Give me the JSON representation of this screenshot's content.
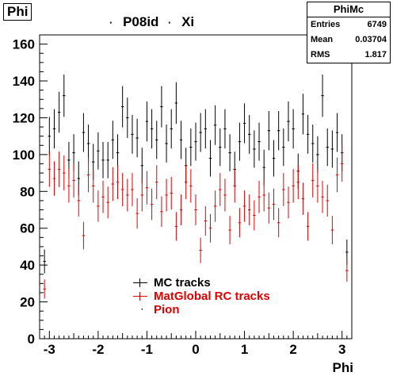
{
  "title": "Phi",
  "header_legend": {
    "left": "P08id",
    "right": "Xi"
  },
  "stats": {
    "name": "PhiMc",
    "rows": [
      {
        "label": "Entries",
        "value": "6749"
      },
      {
        "label": "Mean",
        "value": "0.03704"
      },
      {
        "label": "RMS",
        "value": "1.817"
      }
    ]
  },
  "legend": [
    {
      "label": "MC tracks",
      "color": "#000000"
    },
    {
      "label": "MatGlobal RC tracks",
      "color": "#e00000"
    },
    {
      "label": "Pion",
      "color": "#e00000"
    }
  ],
  "chart_data": {
    "type": "scatter",
    "title": "Phi",
    "xlabel": "Phi",
    "ylabel": "",
    "xlim": [
      -3.2,
      3.2
    ],
    "ylim": [
      0,
      165
    ],
    "xticks": [
      "-3",
      "-2",
      "-1",
      "0",
      "1",
      "2",
      "3"
    ],
    "yticks": [
      "0",
      "20",
      "40",
      "60",
      "80",
      "100",
      "120",
      "140",
      "160"
    ],
    "grid": false,
    "x": [
      -3.1,
      -3.0,
      -2.9,
      -2.8,
      -2.7,
      -2.6,
      -2.5,
      -2.4,
      -2.3,
      -2.2,
      -2.1,
      -2.0,
      -1.9,
      -1.8,
      -1.7,
      -1.6,
      -1.5,
      -1.4,
      -1.3,
      -1.2,
      -1.1,
      -1.0,
      -0.9,
      -0.8,
      -0.7,
      -0.6,
      -0.5,
      -0.4,
      -0.3,
      -0.2,
      -0.1,
      0.0,
      0.1,
      0.2,
      0.3,
      0.4,
      0.5,
      0.6,
      0.7,
      0.8,
      0.9,
      1.0,
      1.1,
      1.2,
      1.3,
      1.4,
      1.5,
      1.6,
      1.7,
      1.8,
      1.9,
      2.0,
      2.1,
      2.2,
      2.3,
      2.4,
      2.5,
      2.6,
      2.7,
      2.8,
      2.9,
      3.0,
      3.1
    ],
    "series": [
      {
        "name": "MC tracks",
        "color": "#000000",
        "values": [
          42,
          110,
          114,
          123,
          132,
          97,
          101,
          87,
          112,
          106,
          96,
          102,
          97,
          97,
          108,
          101,
          126,
          120,
          111,
          109,
          94,
          118,
          114,
          108,
          126,
          106,
          114,
          128,
          108,
          94,
          104,
          107,
          112,
          114,
          98,
          116,
          104,
          114,
          101,
          92,
          107,
          117,
          111,
          103,
          107,
          93,
          113,
          98,
          113,
          104,
          118,
          114,
          91,
          122,
          111,
          106,
          100,
          132,
          104,
          103,
          112,
          101,
          47
        ]
      },
      {
        "name": "MatGlobal RC tracks",
        "color": "#e00000",
        "values": [
          27,
          92,
          87,
          92,
          90,
          83,
          86,
          75,
          56,
          89,
          83,
          72,
          77,
          74,
          84,
          85,
          81,
          78,
          81,
          68,
          78,
          82,
          73,
          85,
          69,
          78,
          79,
          61,
          70,
          85,
          83,
          70,
          48,
          64,
          60,
          72,
          81,
          78,
          59,
          83,
          63,
          72,
          70,
          67,
          77,
          78,
          71,
          73,
          63,
          81,
          74,
          83,
          85,
          76,
          61,
          86,
          83,
          77,
          75,
          59,
          89,
          95,
          37
        ]
      }
    ]
  }
}
